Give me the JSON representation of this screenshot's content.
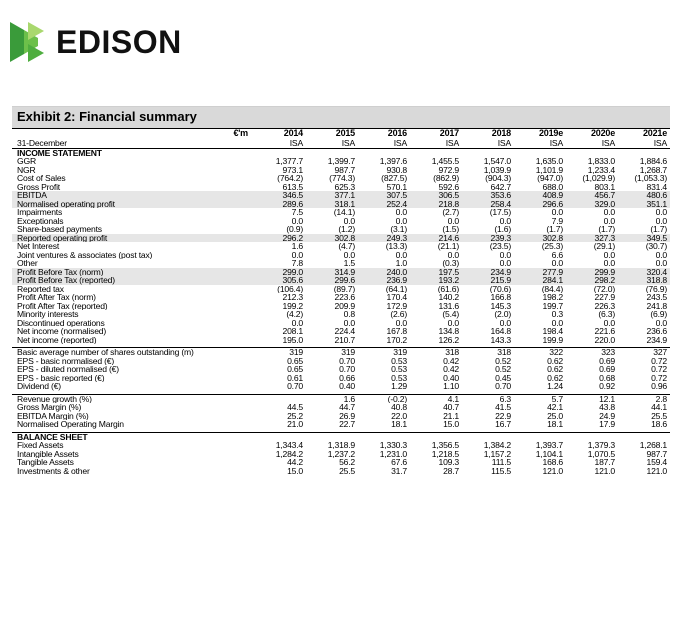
{
  "brand": {
    "name": "EDISON",
    "logo_colors": [
      "#3a9b3a",
      "#6cc04a",
      "#a9d86e"
    ]
  },
  "exhibit": {
    "title": "Exhibit 2: Financial summary"
  },
  "table": {
    "unit": "€'m",
    "years": [
      "2014",
      "2015",
      "2016",
      "2017",
      "2018",
      "2019e",
      "2020e",
      "2021e"
    ],
    "basis": [
      "ISA",
      "ISA",
      "ISA",
      "ISA",
      "ISA",
      "ISA",
      "ISA",
      "ISA"
    ],
    "year_end_label": "31-December",
    "income_statement": {
      "heading": "INCOME STATEMENT",
      "rows": [
        {
          "label": "GGR",
          "values": [
            "1,377.7",
            "1,399.7",
            "1,397.6",
            "1,455.5",
            "1,547.0",
            "1,635.0",
            "1,833.0",
            "1,884.6"
          ]
        },
        {
          "label": "NGR",
          "values": [
            "973.1",
            "987.7",
            "930.8",
            "972.9",
            "1,039.9",
            "1,101.9",
            "1,233.4",
            "1,268.7"
          ]
        },
        {
          "label": "Cost of Sales",
          "values": [
            "(764.2)",
            "(774.3)",
            "(827.5)",
            "(862.9)",
            "(904.3)",
            "(947.0)",
            "(1,029.9)",
            "(1,053.3)"
          ]
        },
        {
          "label": "Gross Profit",
          "values": [
            "613.5",
            "625.3",
            "570.1",
            "592.6",
            "642.7",
            "688.0",
            "803.1",
            "831.4"
          ]
        },
        {
          "label": "EBITDA",
          "values": [
            "346.5",
            "377.1",
            "307.5",
            "306.5",
            "353.6",
            "408.9",
            "456.7",
            "480.6"
          ],
          "shade": true
        },
        {
          "label": "Normalised operating profit",
          "values": [
            "289.6",
            "318.1",
            "252.4",
            "218.8",
            "258.4",
            "296.6",
            "329.0",
            "351.1"
          ],
          "shade": true
        },
        {
          "label": "Impairments",
          "values": [
            "7.5",
            "(14.1)",
            "0.0",
            "(2.7)",
            "(17.5)",
            "0.0",
            "0.0",
            "0.0"
          ]
        },
        {
          "label": "Exceptionals",
          "values": [
            "0.0",
            "0.0",
            "0.0",
            "0.0",
            "0.0",
            "7.9",
            "0.0",
            "0.0"
          ]
        },
        {
          "label": "Share-based payments",
          "values": [
            "(0.9)",
            "(1.2)",
            "(3.1)",
            "(1.5)",
            "(1.6)",
            "(1.7)",
            "(1.7)",
            "(1.7)"
          ]
        },
        {
          "label": "Reported operating profit",
          "values": [
            "296.2",
            "302.8",
            "249.3",
            "214.6",
            "239.3",
            "302.8",
            "327.3",
            "349.5"
          ],
          "shade": true
        },
        {
          "label": "Net Interest",
          "values": [
            "1.6",
            "(4.7)",
            "(13.3)",
            "(21.1)",
            "(23.5)",
            "(25.3)",
            "(29.1)",
            "(30.7)"
          ]
        },
        {
          "label": "Joint ventures & associates (post tax)",
          "values": [
            "0.0",
            "0.0",
            "0.0",
            "0.0",
            "0.0",
            "6.6",
            "0.0",
            "0.0"
          ]
        },
        {
          "label": "Other",
          "values": [
            "7.8",
            "1.5",
            "1.0",
            "(0.3)",
            "0.0",
            "0.0",
            "0.0",
            "0.0"
          ]
        },
        {
          "label": "Profit Before Tax (norm)",
          "values": [
            "299.0",
            "314.9",
            "240.0",
            "197.5",
            "234.9",
            "277.9",
            "299.9",
            "320.4"
          ],
          "shade": true
        },
        {
          "label": "Profit Before Tax (reported)",
          "values": [
            "305.6",
            "299.6",
            "236.9",
            "193.2",
            "215.9",
            "284.1",
            "298.2",
            "318.8"
          ],
          "shade": true
        },
        {
          "label": "Reported tax",
          "values": [
            "(106.4)",
            "(89.7)",
            "(64.1)",
            "(61.6)",
            "(70.6)",
            "(84.4)",
            "(72.0)",
            "(76.9)"
          ]
        },
        {
          "label": "Profit After Tax (norm)",
          "values": [
            "212.3",
            "223.6",
            "170.4",
            "140.2",
            "166.8",
            "198.2",
            "227.9",
            "243.5"
          ]
        },
        {
          "label": "Profit After Tax (reported)",
          "values": [
            "199.2",
            "209.9",
            "172.9",
            "131.6",
            "145.3",
            "199.7",
            "226.3",
            "241.8"
          ]
        },
        {
          "label": "Minority interests",
          "values": [
            "(4.2)",
            "0.8",
            "(2.6)",
            "(5.4)",
            "(2.0)",
            "0.3",
            "(6.3)",
            "(6.9)"
          ]
        },
        {
          "label": "Discontinued operations",
          "values": [
            "0.0",
            "0.0",
            "0.0",
            "0.0",
            "0.0",
            "0.0",
            "0.0",
            "0.0"
          ]
        },
        {
          "label": "Net income (normalised)",
          "values": [
            "208.1",
            "224.4",
            "167.8",
            "134.8",
            "164.8",
            "198.4",
            "221.6",
            "236.6"
          ]
        },
        {
          "label": "Net income (reported)",
          "values": [
            "195.0",
            "210.7",
            "170.2",
            "126.2",
            "143.3",
            "199.9",
            "220.0",
            "234.9"
          ]
        }
      ]
    },
    "per_share": {
      "rows": [
        {
          "label": "Basic average number of shares outstanding (m)",
          "values": [
            "319",
            "319",
            "319",
            "318",
            "318",
            "322",
            "323",
            "327"
          ]
        },
        {
          "label": "EPS - basic normalised (€)",
          "values": [
            "0.65",
            "0.70",
            "0.53",
            "0.42",
            "0.52",
            "0.62",
            "0.69",
            "0.72"
          ]
        },
        {
          "label": "EPS - diluted normalised (€)",
          "values": [
            "0.65",
            "0.70",
            "0.53",
            "0.42",
            "0.52",
            "0.62",
            "0.69",
            "0.72"
          ]
        },
        {
          "label": "EPS - basic reported (€)",
          "values": [
            "0.61",
            "0.66",
            "0.53",
            "0.40",
            "0.45",
            "0.62",
            "0.68",
            "0.72"
          ]
        },
        {
          "label": "Dividend (€)",
          "values": [
            "0.70",
            "0.40",
            "1.29",
            "1.10",
            "0.70",
            "1.24",
            "0.92",
            "0.96"
          ]
        }
      ]
    },
    "margins": {
      "rows": [
        {
          "label": "Revenue growth (%)",
          "values": [
            "",
            "1.6",
            "(-0.2)",
            "4.1",
            "6.3",
            "5.7",
            "12.1",
            "2.8"
          ]
        },
        {
          "label": "Gross Margin (%)",
          "values": [
            "44.5",
            "44.7",
            "40.8",
            "40.7",
            "41.5",
            "42.1",
            "43.8",
            "44.1"
          ]
        },
        {
          "label": "EBITDA Margin (%)",
          "values": [
            "25.2",
            "26.9",
            "22.0",
            "21.1",
            "22.9",
            "25.0",
            "24.9",
            "25.5"
          ]
        },
        {
          "label": "Normalised Operating Margin",
          "values": [
            "21.0",
            "22.7",
            "18.1",
            "15.0",
            "16.7",
            "18.1",
            "17.9",
            "18.6"
          ]
        }
      ]
    },
    "balance_sheet": {
      "heading": "BALANCE SHEET",
      "rows": [
        {
          "label": "Fixed Assets",
          "values": [
            "1,343.4",
            "1,318.9",
            "1,330.3",
            "1,356.5",
            "1,384.2",
            "1,393.7",
            "1,379.3",
            "1,268.1"
          ]
        },
        {
          "label": "Intangible Assets",
          "values": [
            "1,284.2",
            "1,237.2",
            "1,231.0",
            "1,218.5",
            "1,157.2",
            "1,104.1",
            "1,070.5",
            "987.7"
          ]
        },
        {
          "label": "Tangible Assets",
          "values": [
            "44.2",
            "56.2",
            "67.6",
            "109.3",
            "111.5",
            "168.6",
            "187.7",
            "159.4"
          ]
        },
        {
          "label": "Investments & other",
          "values": [
            "15.0",
            "25.5",
            "31.7",
            "28.7",
            "115.5",
            "121.0",
            "121.0",
            "121.0"
          ]
        }
      ]
    }
  }
}
